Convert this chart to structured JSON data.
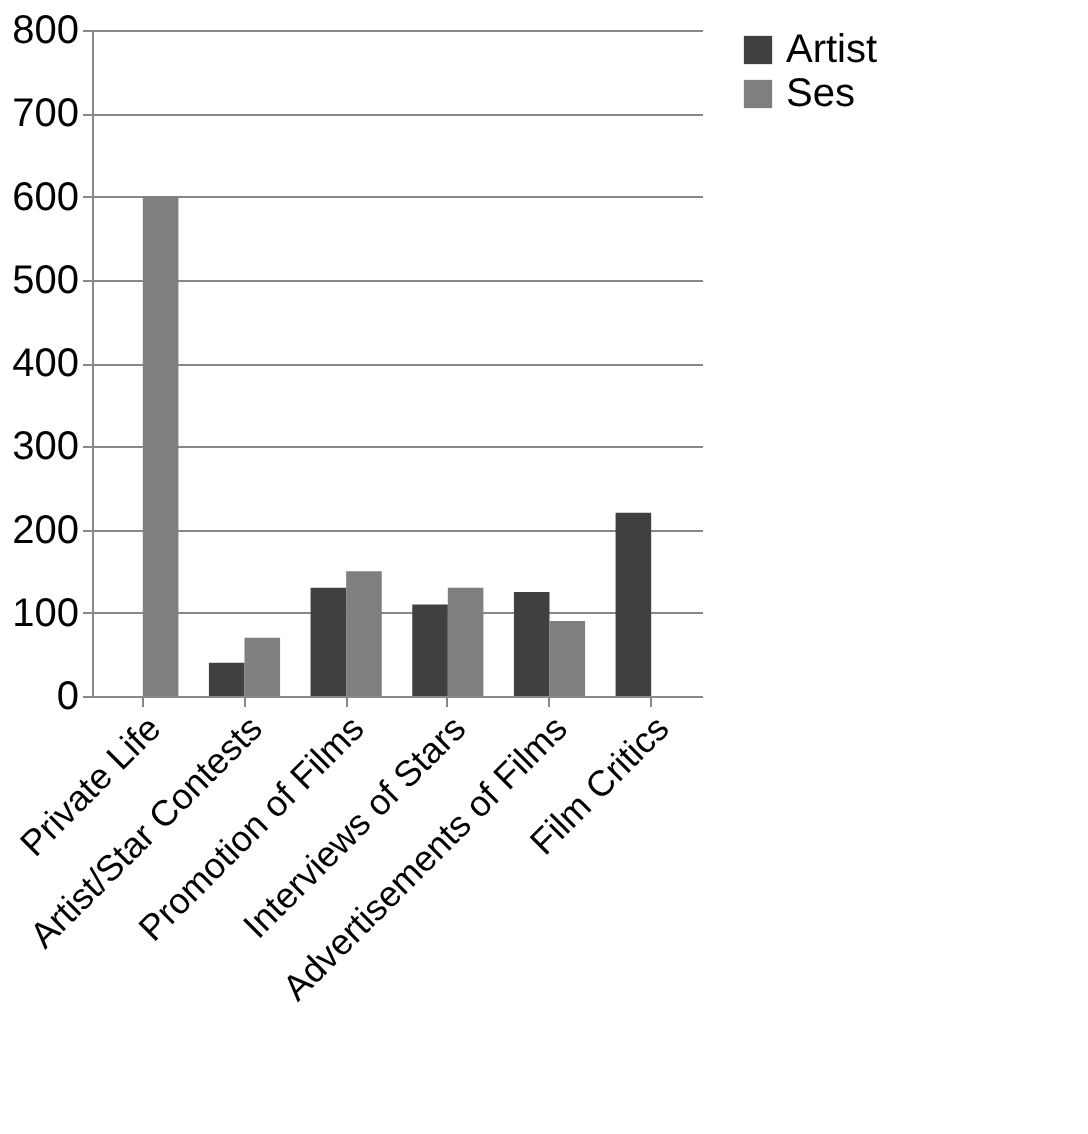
{
  "chart_data": {
    "type": "bar",
    "categories": [
      "Private Life",
      "Artist/Star Contests",
      "Promotion of Films",
      "Interviews of Stars",
      "Advertisements of Films",
      "Film Critics"
    ],
    "series": [
      {
        "name": "Artist",
        "color": "#404040",
        "values": [
          null,
          40,
          130,
          110,
          125,
          220
        ]
      },
      {
        "name": "Ses",
        "color": "#7f7f7f",
        "values": [
          600,
          70,
          150,
          130,
          90,
          null
        ]
      }
    ],
    "ylim": [
      0,
      800
    ],
    "yticks": [
      0,
      100,
      200,
      300,
      400,
      500,
      600,
      700,
      800
    ],
    "grid": "y",
    "legend": "right"
  }
}
